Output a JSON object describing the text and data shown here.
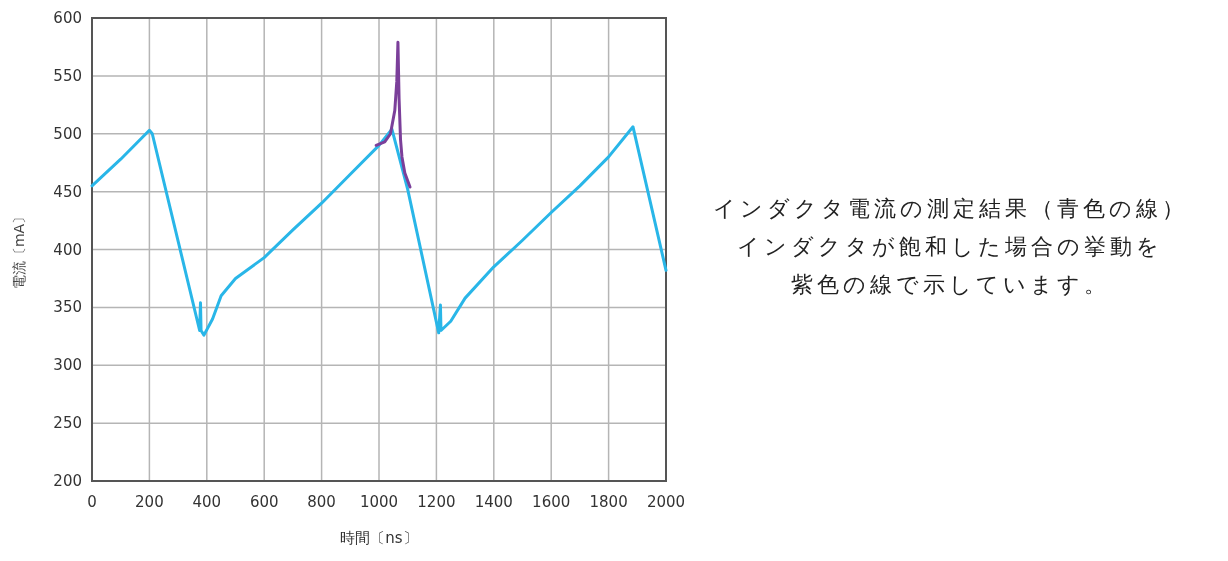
{
  "chart_data": {
    "type": "line",
    "xlabel": "時間〔ns〕",
    "ylabel": "電流〔mA〕",
    "xlim": [
      0,
      2000
    ],
    "ylim": [
      200,
      600
    ],
    "xticks": [
      0,
      200,
      400,
      600,
      800,
      1000,
      1200,
      1400,
      1600,
      1800,
      2000
    ],
    "yticks": [
      200,
      250,
      300,
      350,
      400,
      450,
      500,
      550,
      600
    ],
    "grid": true,
    "marker": "none",
    "line_style": "solid",
    "annotations": [
      "インダクタ電流の測定結果（青色の線）",
      "インダクタが飽和した場合の挙動を紫色の線で示しています。"
    ],
    "series": [
      {
        "color": "#29b6e8",
        "x": [
          0,
          100,
          200,
          210,
          375,
          378,
          380,
          390,
          420,
          450,
          500,
          600,
          700,
          800,
          900,
          1000,
          1045,
          1100,
          1208,
          1214,
          1216,
          1250,
          1300,
          1400,
          1500,
          1600,
          1700,
          1800,
          1885,
          2000
        ],
        "values": [
          455,
          478,
          503,
          500,
          330,
          354,
          330,
          326,
          340,
          360,
          375,
          393,
          417,
          440,
          465,
          490,
          504,
          452,
          328,
          352,
          330,
          338,
          358,
          385,
          408,
          432,
          455,
          480,
          506,
          382
        ]
      },
      {
        "color": "#7b3f9a",
        "x": [
          990,
          1020,
          1040,
          1055,
          1062,
          1066,
          1070,
          1075,
          1080,
          1090,
          1108
        ],
        "values": [
          490,
          493,
          500,
          520,
          545,
          579,
          530,
          495,
          480,
          466,
          454
        ]
      }
    ]
  }
}
